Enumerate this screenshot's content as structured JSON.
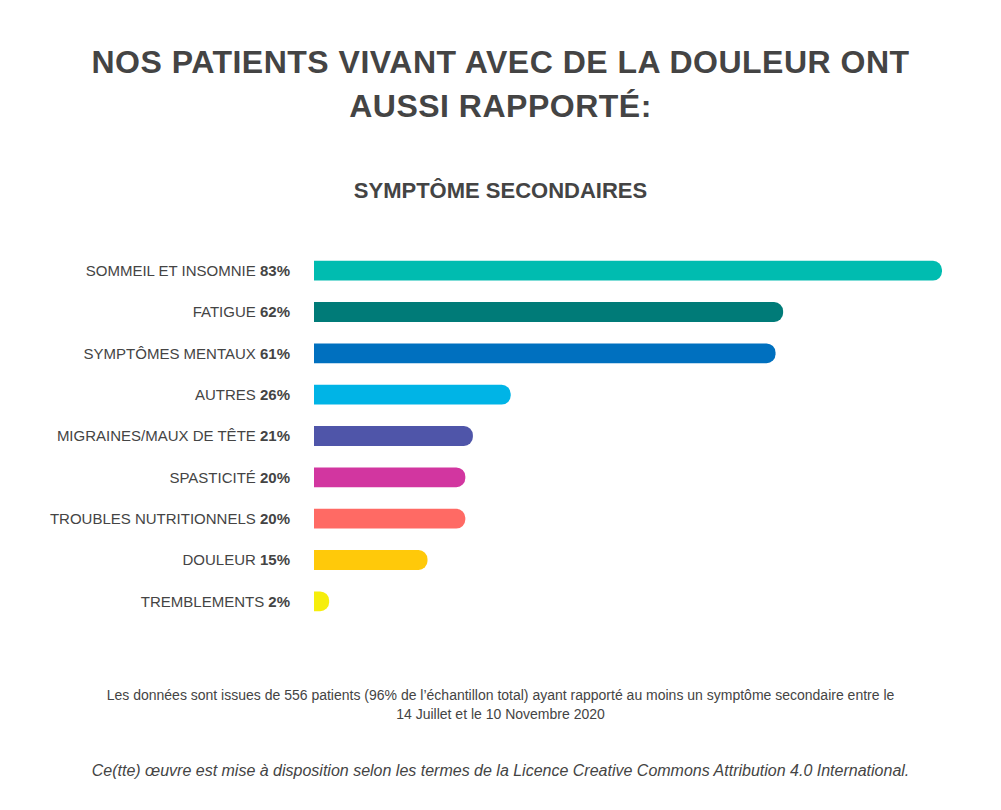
{
  "chart_data": {
    "type": "bar",
    "orientation": "horizontal",
    "title": "NOS PATIENTS VIVANT AVEC DE LA DOULEUR ONT AUSSI RAPPORTÉ:",
    "subtitle": "SYMPTÔME SECONDAIRES",
    "categories": [
      "SOMMEIL ET INSOMNIE",
      "FATIGUE",
      "SYMPTÔMES MENTAUX",
      "AUTRES",
      "MIGRAINES/MAUX DE TÊTE",
      "SPASTICITÉ",
      "TROUBLES NUTRITIONNELS",
      "DOULEUR",
      "TREMBLEMENTS"
    ],
    "values": [
      83,
      62,
      61,
      26,
      21,
      20,
      20,
      15,
      2
    ],
    "value_labels": [
      "83%",
      "62%",
      "61%",
      "26%",
      "21%",
      "20%",
      "20%",
      "15%",
      "2%"
    ],
    "colors": [
      "#00bcb0",
      "#007b78",
      "#0070bf",
      "#00b4e6",
      "#4f55a9",
      "#d236a0",
      "#ff6a64",
      "#ffc90a",
      "#f6ee0c"
    ],
    "xlim": [
      0,
      83
    ],
    "tick_labels": "y",
    "grid": false,
    "annotations": [
      "Les données sont issues de 556 patients (96% de l’échantillon total) ayant rapporté au moins un symptôme secondaire entre le 14 Juillet et le 10 Novembre 2020",
      "Ce(tte) œuvre est mise à disposition selon les termes de la Licence Creative Commons Attribution 4.0 International."
    ]
  }
}
